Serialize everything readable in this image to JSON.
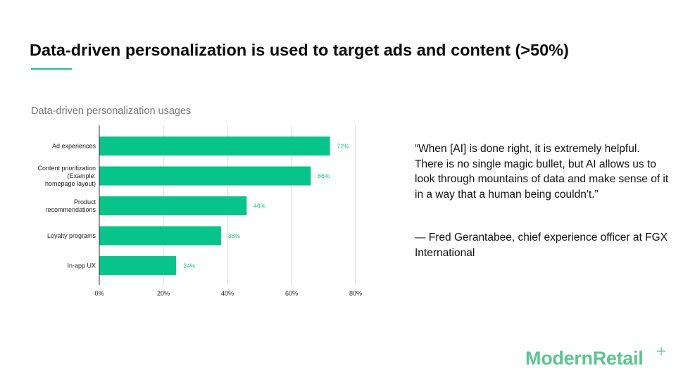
{
  "slide": {
    "title": "Data-driven personalization is used to target ads and content (>50%)",
    "quote": "“When [AI] is done right, it is extremely helpful. There is no single magic bullet, but AI allows us to look through mountains of data and make sense of it in a way that a human being couldn't.”",
    "attribution": "— Fred Gerantabee, chief experience officer at FGX International",
    "logo": "ModernRetail"
  },
  "colors": {
    "accent": "#1fc18a",
    "bar": "#06c48a",
    "logo": "#5cc48f",
    "grid": "#d9d9d9"
  },
  "chart_data": {
    "type": "bar",
    "orientation": "horizontal",
    "title": "Data-driven personalization usages",
    "categories": [
      [
        "Ad experiences"
      ],
      [
        "Content prioritization",
        "(Example:",
        "homepage layout)"
      ],
      [
        "Product",
        "recommendations"
      ],
      [
        "Loyalty programs"
      ],
      [
        "In-app UX"
      ]
    ],
    "values": [
      72,
      66,
      46,
      38,
      24
    ],
    "data_labels": [
      "72%",
      "66%",
      "46%",
      "38%",
      "24%"
    ],
    "xlim": [
      0,
      80
    ],
    "xticks": [
      0,
      20,
      40,
      60,
      80
    ],
    "xtick_labels": [
      "0%",
      "20%",
      "40%",
      "60%",
      "80%"
    ],
    "grid": true,
    "xlabel": "",
    "ylabel": ""
  }
}
